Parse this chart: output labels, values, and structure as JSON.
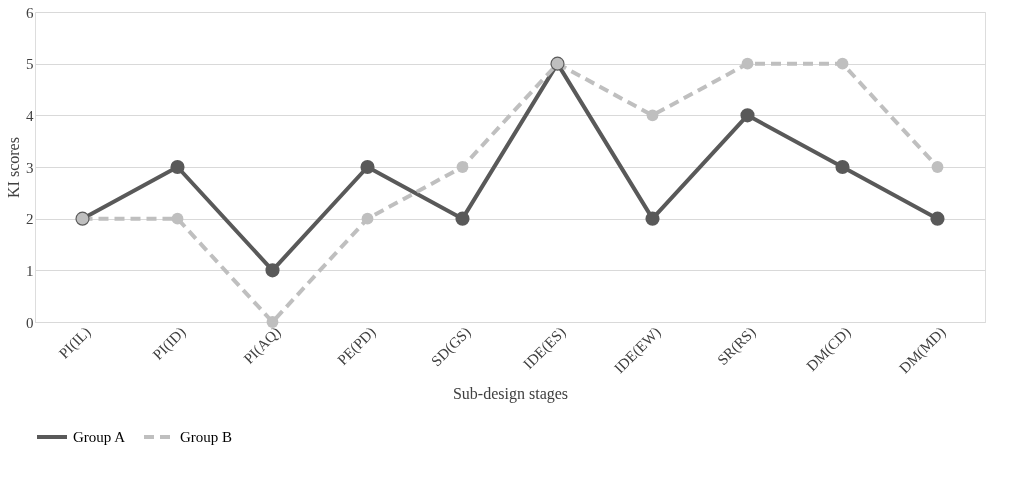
{
  "chart_data": {
    "type": "line",
    "xlabel": "Sub-design stages",
    "ylabel": "KI scores",
    "categories": [
      "PI(IL)",
      "PI(ID)",
      "PI(AQ)",
      "PE(PD)",
      "SD(GS)",
      "IDE(ES)",
      "IDE(EW)",
      "SR(RS)",
      "DM(CD)",
      "DM(MD)"
    ],
    "series": [
      {
        "name": "Group A",
        "color": "#595959",
        "line_style": "solid",
        "values": [
          2,
          3,
          1,
          3,
          2,
          5,
          2,
          4,
          3,
          2
        ]
      },
      {
        "name": "Group B",
        "color": "#bfbfbf",
        "line_style": "dashed",
        "values": [
          2,
          2,
          0,
          2,
          3,
          5,
          4,
          5,
          5,
          3
        ]
      }
    ],
    "ylim": [
      0,
      6
    ],
    "yticks": [
      0,
      1,
      2,
      3,
      4,
      5,
      6
    ],
    "grid": "y",
    "legend": "bottom",
    "marker": "circle"
  }
}
